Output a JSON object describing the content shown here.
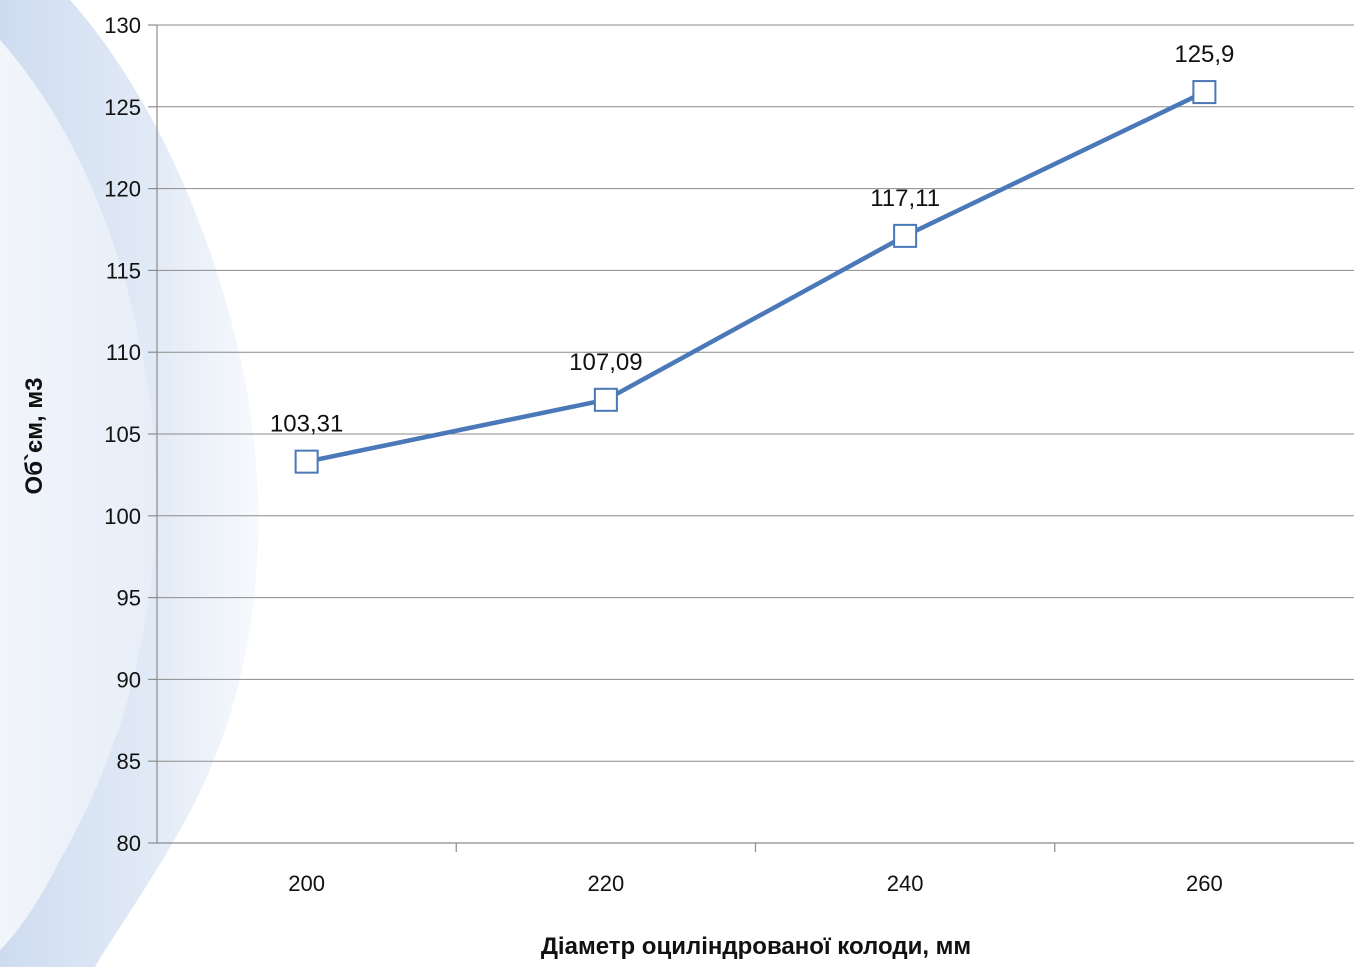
{
  "chart_data": {
    "type": "line",
    "title": "",
    "xlabel": "Діаметр оциліндрованої колоди, мм",
    "ylabel": "Об`єм, м3",
    "categories": [
      "200",
      "220",
      "240",
      "260"
    ],
    "series": [
      {
        "values": [
          103.31,
          107.09,
          117.11,
          125.9
        ],
        "data_labels": [
          "103,31",
          "107,09",
          "117,11",
          "125,9"
        ],
        "color": "#4a78b8",
        "marker": "square-hollow"
      }
    ],
    "ylim": [
      80,
      130
    ],
    "yticks": [
      "80",
      "85",
      "90",
      "95",
      "100",
      "105",
      "110",
      "115",
      "120",
      "125",
      "130"
    ],
    "grid": true,
    "legend": "none",
    "background_decoration": "light-blue-swoosh"
  }
}
